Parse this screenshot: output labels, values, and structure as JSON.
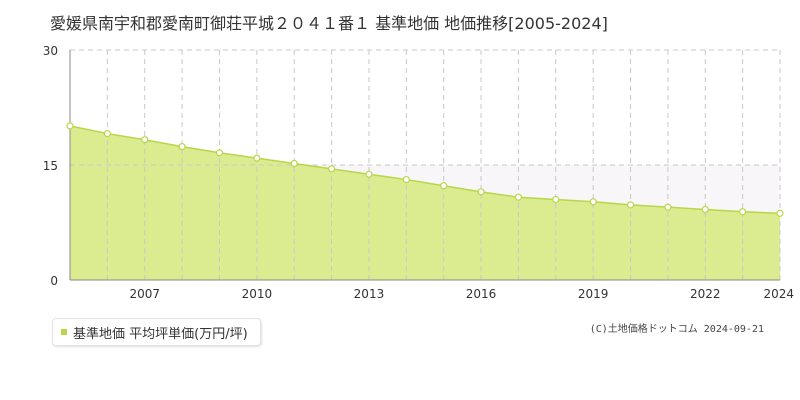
{
  "title": "愛媛県南宇和郡愛南町御荘平城２０４１番１ 基準地価 地価推移[2005-2024]",
  "legend": {
    "label": "基準地価 平均坪単価(万円/坪)"
  },
  "copyright": "(C)土地価格ドットコム 2024-09-21",
  "colors": {
    "fill": "#dbeb8f",
    "line": "#b8d64a",
    "point_fill": "#ffffff",
    "grid": "#c8c8c8",
    "axis": "#888888",
    "above_band": "#f8f6f8"
  },
  "chart_data": {
    "type": "area",
    "title": "愛媛県南宇和郡愛南町御荘平城２０４１番１ 基準地価 地価推移[2005-2024]",
    "x": [
      2005,
      2006,
      2007,
      2008,
      2009,
      2010,
      2011,
      2012,
      2013,
      2014,
      2015,
      2016,
      2017,
      2018,
      2019,
      2020,
      2021,
      2022,
      2023,
      2024
    ],
    "series": [
      {
        "name": "基準地価 平均坪単価(万円/坪)",
        "values": [
          20.1,
          19.1,
          18.3,
          17.4,
          16.6,
          15.9,
          15.2,
          14.5,
          13.8,
          13.1,
          12.3,
          11.5,
          10.8,
          10.5,
          10.2,
          9.8,
          9.5,
          9.2,
          8.9,
          8.7
        ]
      }
    ],
    "ylim": [
      0,
      30
    ],
    "yticks": [
      0,
      15,
      30
    ],
    "xtick_labels": [
      "2007",
      "2010",
      "2013",
      "2016",
      "2019",
      "2022",
      "2024"
    ],
    "grid": true
  }
}
